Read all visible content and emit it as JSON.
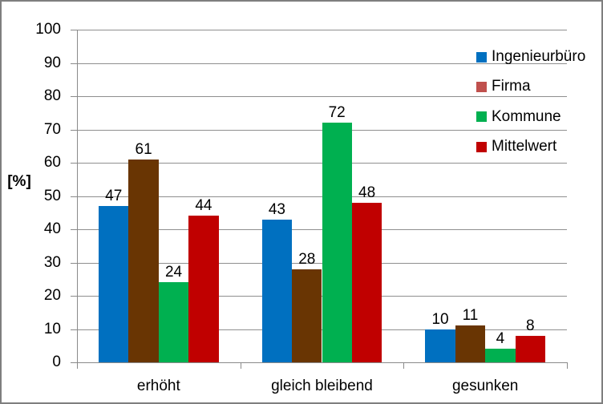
{
  "chart_data": {
    "type": "bar",
    "title": "",
    "ylabel": "[%]",
    "xlabel": "",
    "ylim": [
      0,
      100
    ],
    "ytick_step": 10,
    "grid": true,
    "value_labels": true,
    "legend_position": "right-inside",
    "categories": [
      "erhöht",
      "gleich bleibend",
      "gesunken"
    ],
    "series": [
      {
        "name": "Ingenieurbüro",
        "color": "#0070C0",
        "values": [
          47,
          43,
          10
        ]
      },
      {
        "name": "Firma",
        "color": "#693503",
        "legend_color": "#C0504D",
        "values": [
          61,
          28,
          11
        ]
      },
      {
        "name": "Kommune",
        "color": "#00B050",
        "values": [
          24,
          72,
          4
        ]
      },
      {
        "name": "Mittelwert",
        "color": "#C00000",
        "values": [
          44,
          48,
          8
        ]
      }
    ]
  },
  "colors": {
    "grid": "#8f8f8f",
    "axis": "#8a8a8a",
    "frame_border": "#7f7f7f",
    "text": "#000000",
    "background": "#ffffff"
  }
}
